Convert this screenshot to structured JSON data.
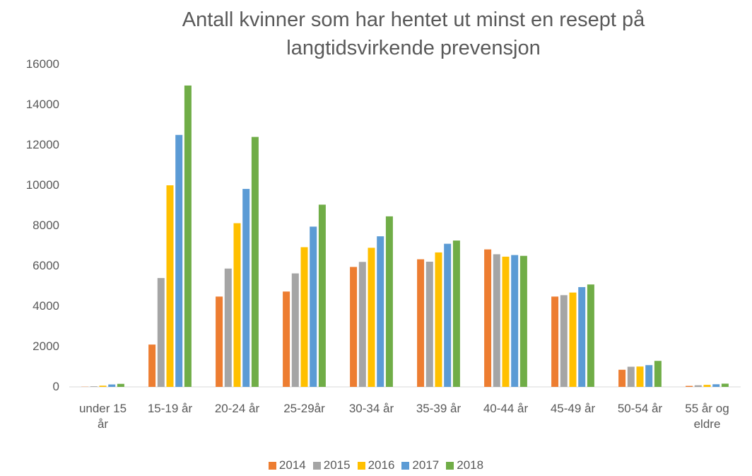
{
  "chart_data": {
    "type": "bar",
    "title": "Antall kvinner som har hentet ut minst en resept på langtidsvirkende prevensjon",
    "categories": [
      "under 15 år",
      "15-19 år",
      "20-24 år",
      "25-29år",
      "30-34 år",
      "35-39 år",
      "40-44 år",
      "45-49 år",
      "50-54 år",
      "55 år og eldre"
    ],
    "series": [
      {
        "name": "2014",
        "color": "#ed7d31",
        "values": [
          10,
          2100,
          4480,
          4730,
          5950,
          6330,
          6820,
          4480,
          850,
          50
        ]
      },
      {
        "name": "2015",
        "color": "#a5a5a5",
        "values": [
          30,
          5400,
          5870,
          5630,
          6200,
          6210,
          6580,
          4550,
          1000,
          80
        ]
      },
      {
        "name": "2016",
        "color": "#ffc000",
        "values": [
          60,
          10000,
          8120,
          6930,
          6900,
          6670,
          6460,
          4680,
          1010,
          100
        ]
      },
      {
        "name": "2017",
        "color": "#5b9bd5",
        "values": [
          120,
          12500,
          9820,
          7950,
          7470,
          7100,
          6540,
          4950,
          1080,
          130
        ]
      },
      {
        "name": "2018",
        "color": "#70ad47",
        "values": [
          150,
          14950,
          12400,
          9040,
          8460,
          7260,
          6500,
          5080,
          1290,
          160
        ]
      }
    ],
    "ylim": [
      0,
      16000
    ],
    "yticks": [
      0,
      2000,
      4000,
      6000,
      8000,
      10000,
      12000,
      14000,
      16000
    ],
    "grid": false,
    "legend": "bottom"
  }
}
